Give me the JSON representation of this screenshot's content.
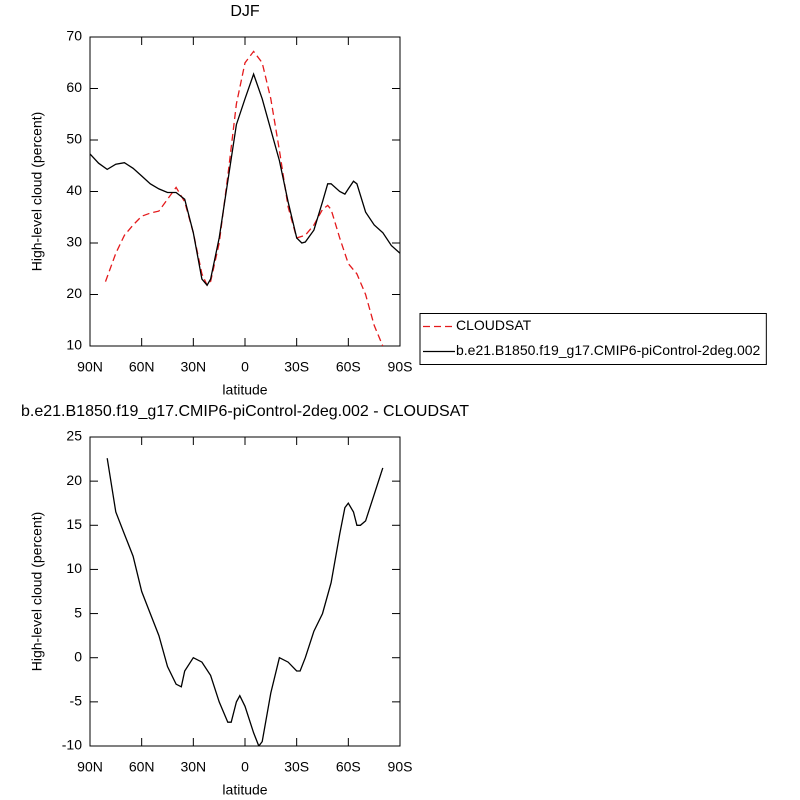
{
  "chart_data": [
    {
      "type": "line",
      "title": "DJF",
      "xlabel": "latitude",
      "ylabel": "High-level cloud (percent)",
      "xlim": [
        90,
        -90
      ],
      "ylim": [
        10,
        70
      ],
      "xticks": [
        {
          "value": 90,
          "label": "90N"
        },
        {
          "value": 60,
          "label": "60N"
        },
        {
          "value": 30,
          "label": "30N"
        },
        0,
        {
          "value": -30,
          "label": "30S"
        },
        {
          "value": -60,
          "label": "60S"
        },
        {
          "value": -90,
          "label": "90S"
        }
      ],
      "yticks": [
        10,
        20,
        30,
        40,
        50,
        60,
        70
      ],
      "legend": "right",
      "series": [
        {
          "name": "CLOUDSAT",
          "color": "#e41a1c",
          "line_style": "dashed",
          "x": [
            81,
            75,
            70,
            65,
            60,
            55,
            50,
            45,
            40,
            35,
            30,
            25,
            22,
            20,
            15,
            10,
            5,
            0,
            -5,
            -10,
            -15,
            -20,
            -25,
            -30,
            -35,
            -40,
            -45,
            -48,
            -50,
            -55,
            -60,
            -65,
            -70,
            -75,
            -80
          ],
          "values": [
            22.5,
            28,
            31.5,
            33.5,
            35.2,
            35.8,
            36.2,
            38.5,
            40.8,
            38,
            32,
            24,
            21.8,
            22.5,
            30,
            43,
            57,
            65,
            67.2,
            65,
            58,
            48,
            37,
            31,
            31.5,
            33.5,
            36.5,
            37.3,
            36.5,
            31,
            26,
            24,
            20,
            14,
            10
          ]
        },
        {
          "name": "b.e21.B1850.f19_g17.CMIP6-piControl-2deg.002",
          "color": "#000000",
          "line_style": "solid",
          "x": [
            90,
            85,
            80,
            75,
            70,
            65,
            60,
            55,
            50,
            45,
            40,
            35,
            30,
            25,
            22,
            20,
            15,
            10,
            5,
            0,
            -5,
            -10,
            -15,
            -20,
            -25,
            -30,
            -33,
            -35,
            -40,
            -45,
            -48,
            -50,
            -55,
            -58,
            -60,
            -63,
            -65,
            -70,
            -75,
            -80,
            -85,
            -90
          ],
          "values": [
            47.3,
            45.5,
            44.3,
            45.3,
            45.6,
            44.5,
            43,
            41.5,
            40.5,
            39.8,
            39.8,
            38.5,
            32,
            23,
            21.8,
            23,
            31,
            42,
            53,
            58,
            62.8,
            58,
            52,
            46,
            38,
            31,
            30,
            30.2,
            32.5,
            38,
            41.5,
            41.5,
            40,
            39.5,
            40.5,
            42,
            41.5,
            36,
            33.5,
            32,
            29.5,
            28
          ]
        }
      ]
    },
    {
      "type": "line",
      "title": "b.e21.B1850.f19_g17.CMIP6-piControl-2deg.002 - CLOUDSAT",
      "xlabel": "latitude",
      "ylabel": "High-level cloud (percent)",
      "xlim": [
        90,
        -90
      ],
      "ylim": [
        -10,
        25
      ],
      "xticks": [
        {
          "value": 90,
          "label": "90N"
        },
        {
          "value": 60,
          "label": "60N"
        },
        {
          "value": 30,
          "label": "30N"
        },
        0,
        {
          "value": -30,
          "label": "30S"
        },
        {
          "value": -60,
          "label": "60S"
        },
        {
          "value": -90,
          "label": "90S"
        }
      ],
      "yticks": [
        -10,
        -5,
        0,
        5,
        10,
        15,
        20,
        25
      ],
      "series": [
        {
          "color": "#000000",
          "line_style": "solid",
          "x": [
            80,
            75,
            70,
            65,
            60,
            55,
            50,
            45,
            40,
            37,
            35,
            30,
            25,
            20,
            15,
            10,
            8,
            5,
            3,
            0,
            -5,
            -8,
            -10,
            -15,
            -20,
            -25,
            -30,
            -32,
            -35,
            -40,
            -45,
            -50,
            -55,
            -58,
            -60,
            -63,
            -65,
            -67,
            -70,
            -75,
            -80
          ],
          "values": [
            22.6,
            16.5,
            14,
            11.5,
            7.5,
            5,
            2.5,
            -1,
            -3,
            -3.3,
            -1.5,
            0,
            -0.5,
            -2,
            -5,
            -7.3,
            -7.3,
            -5,
            -4.3,
            -5.5,
            -8.5,
            -10,
            -9.5,
            -4,
            0,
            -0.5,
            -1.5,
            -1.5,
            0,
            3,
            5,
            8.5,
            14,
            17,
            17.5,
            16.5,
            15,
            15,
            15.5,
            18.5,
            21.5
          ]
        }
      ]
    }
  ]
}
